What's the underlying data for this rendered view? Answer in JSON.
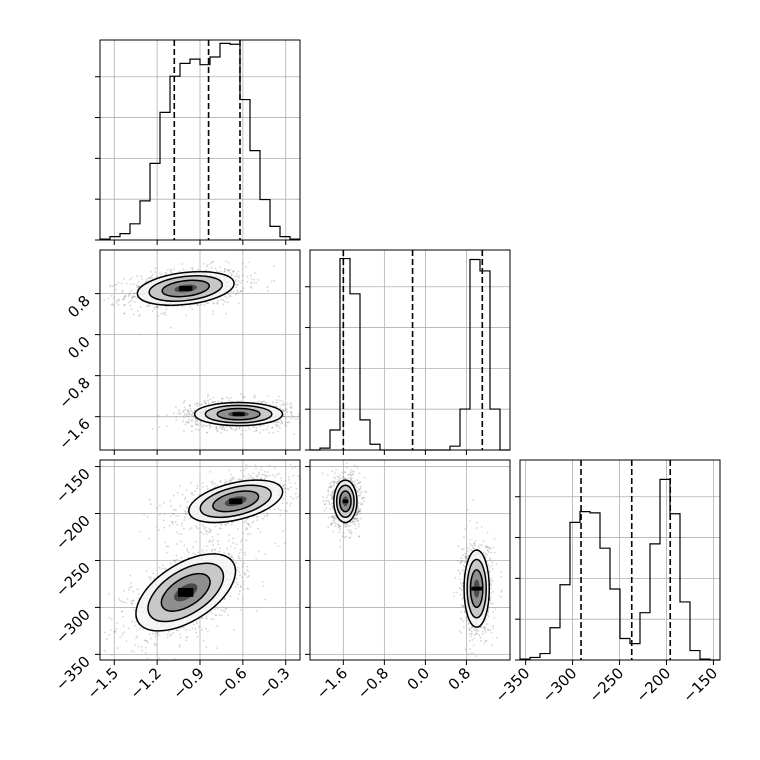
{
  "chart_data": {
    "type": "corner",
    "grid": true,
    "parameters": [
      {
        "xlim": [
          -1.6,
          -0.2
        ],
        "ticks": [
          -1.5,
          -1.2,
          -0.9,
          -0.6,
          -0.3
        ],
        "tick_labels": [
          "−1.5",
          "−1.2",
          "−0.9",
          "−0.6",
          "−0.3"
        ]
      },
      {
        "xlim": [
          -2.25,
          1.65
        ],
        "ticks": [
          -1.6,
          -0.8,
          0.0,
          0.8
        ],
        "tick_labels": [
          "−1.6",
          "−0.8",
          "0.0",
          "0.8"
        ]
      },
      {
        "xlim": [
          -356,
          -143
        ],
        "ticks": [
          -350,
          -300,
          -250,
          -200,
          -150
        ],
        "tick_labels": [
          "−350",
          "−300",
          "−250",
          "−200",
          "−150"
        ]
      }
    ],
    "row_ticks": {
      "param1": {
        "ticks": [
          0.8,
          0.0,
          -0.8,
          -1.6
        ],
        "tick_labels": [
          "0.8",
          "0.0",
          "−0.8",
          "−1.6"
        ]
      },
      "param2": {
        "ticks": [
          -150,
          -200,
          -250,
          -300,
          -350
        ],
        "tick_labels": [
          "−150",
          "−200",
          "−250",
          "−300",
          "−350"
        ]
      }
    },
    "histograms": [
      {
        "param": 0,
        "bin_edges": [
          -1.6,
          -1.53,
          -1.46,
          -1.39,
          -1.32,
          -1.25,
          -1.18,
          -1.11,
          -1.04,
          -0.97,
          -0.9,
          -0.83,
          -0.76,
          -0.69,
          -0.62,
          -0.55,
          -0.48,
          -0.41,
          -0.34,
          -0.27,
          -0.2
        ],
        "counts": [
          2,
          8,
          15,
          38,
          92,
          180,
          300,
          385,
          415,
          425,
          412,
          430,
          462,
          460,
          330,
          210,
          95,
          32,
          8,
          2
        ],
        "ymax": 470,
        "quantiles": [
          -1.08,
          -0.84,
          -0.62
        ]
      },
      {
        "param": 1,
        "bin_edges": [
          -2.25,
          -2.055,
          -1.86,
          -1.665,
          -1.47,
          -1.275,
          -1.08,
          -0.885,
          -0.69,
          -0.495,
          -0.3,
          -0.105,
          0.09,
          0.285,
          0.48,
          0.675,
          0.87,
          1.065,
          1.26,
          1.455,
          1.65
        ],
        "counts": [
          0,
          10,
          105,
          1005,
          820,
          158,
          30,
          0,
          0,
          0,
          0,
          0,
          0,
          0,
          20,
          215,
          1000,
          940,
          215,
          0
        ],
        "ymax": 1050,
        "quantiles": [
          -1.6,
          -0.25,
          1.11
        ]
      },
      {
        "param": 2,
        "bin_edges": [
          -356,
          -345.35,
          -334.7,
          -324.05,
          -313.4,
          -302.75,
          -292.1,
          -281.45,
          -270.8,
          -260.15,
          -249.5,
          -238.85,
          -228.2,
          -217.55,
          -206.9,
          -196.25,
          -185.6,
          -174.95,
          -164.3,
          -153.65,
          -143
        ],
        "counts": [
          2,
          6,
          15,
          75,
          175,
          320,
          345,
          342,
          260,
          165,
          50,
          38,
          110,
          270,
          420,
          340,
          135,
          22,
          2,
          0
        ],
        "ymax": 465,
        "quantiles": [
          -291,
          -237,
          -196
        ]
      }
    ],
    "pair_densities": [
      {
        "x_param": 0,
        "y_param": 1,
        "modes": [
          {
            "center": [
              -1.0,
              0.9
            ],
            "sd": [
              0.165,
              0.16
            ],
            "corr": 0.3,
            "n": 1100
          },
          {
            "center": [
              -0.63,
              -1.55
            ],
            "sd": [
              0.15,
              0.11
            ],
            "corr": 0.0,
            "n": 1100
          }
        ]
      },
      {
        "x_param": 0,
        "y_param": 2,
        "modes": [
          {
            "center": [
              -0.65,
              -187
            ],
            "sd": [
              0.16,
              11
            ],
            "corr": 0.45,
            "n": 1100
          },
          {
            "center": [
              -1.0,
              -284
            ],
            "sd": [
              0.17,
              20
            ],
            "corr": 0.55,
            "n": 1100
          }
        ]
      },
      {
        "x_param": 1,
        "y_param": 2,
        "modes": [
          {
            "center": [
              -1.56,
              -187
            ],
            "sd": [
              0.11,
              11
            ],
            "corr": 0.0,
            "n": 1000
          },
          {
            "center": [
              1.0,
              -280
            ],
            "sd": [
              0.12,
              20
            ],
            "corr": 0.0,
            "n": 1000
          }
        ]
      }
    ]
  }
}
